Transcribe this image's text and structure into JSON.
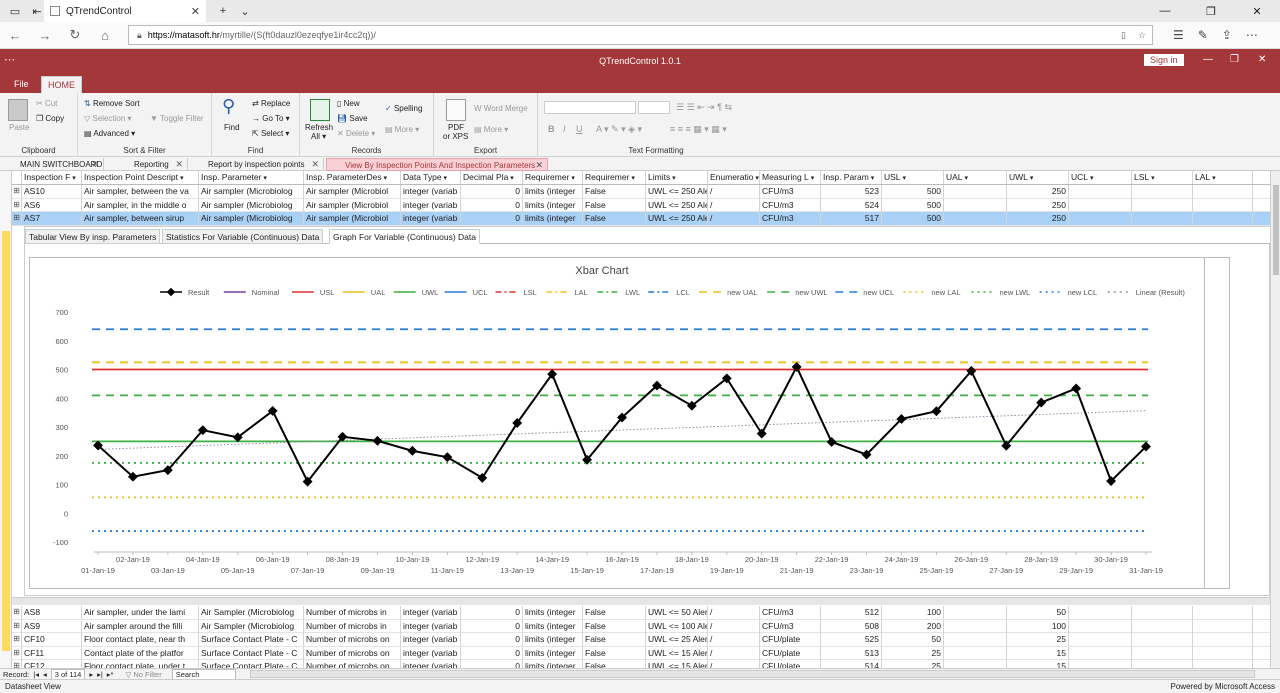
{
  "browser": {
    "tab_title": "QTrendControl",
    "url_domain": "https://matasoft.hr",
    "url_path": "/myrtille/(S(ft0dauzl0ezeqfye1ir4cc2q))/"
  },
  "app": {
    "title": "QTrendControl 1.0.1",
    "signin": "Sign in",
    "ribbon_tabs": [
      "File",
      "HOME"
    ]
  },
  "ribbon": {
    "clipboard": {
      "label": "Clipboard",
      "paste": "Paste",
      "cut": "Cut",
      "copy": "Copy"
    },
    "sort_filter": {
      "label": "Sort & Filter",
      "remove_sort": "Remove Sort",
      "selection": "Selection",
      "toggle_filter": "Toggle Filter",
      "advanced": "Advanced"
    },
    "find": {
      "label": "Find",
      "find": "Find",
      "replace": "Replace",
      "goto": "Go To",
      "select": "Select"
    },
    "records": {
      "label": "Records",
      "refresh": "Refresh",
      "refresh2": "All",
      "new": "New",
      "save": "Save",
      "delete": "Delete",
      "spelling": "Spelling",
      "more": "More"
    },
    "export": {
      "label": "Export",
      "pdf": "PDF",
      "pdf2": "or XPS",
      "word": "Word Merge",
      "more": "More"
    },
    "text_formatting": {
      "label": "Text Formatting"
    }
  },
  "doc_tabs": [
    {
      "label": "MAIN SWITCHBOARD"
    },
    {
      "label": "Reporting"
    },
    {
      "label": "Report by inspection points"
    },
    {
      "label": "View By Inspection Points And Inspection Parameters"
    }
  ],
  "grid": {
    "headers": [
      "Inspection F",
      "Inspection Point Descript",
      "Insp. Parameter",
      "Insp. ParameterDes",
      "Data Type",
      "Decimal Pla",
      "Requiremer",
      "Requiremer",
      "Limits",
      "Enumeratio",
      "Measuring L",
      "Insp. Param",
      "USL",
      "UAL",
      "UWL",
      "UCL",
      "LSL",
      "LAL"
    ],
    "top_rows": [
      [
        "AS10",
        "Air sampler, between the va",
        "Air sampler (Microbiolog",
        "Air sampler (Microbiol",
        "integer (variab",
        "0",
        "limits (integer",
        "False",
        "UWL <= 250 Ale",
        "/",
        "CFU/m3",
        "523",
        "500",
        "",
        "250",
        "",
        "",
        ""
      ],
      [
        "AS6",
        "Air sampler, in the middle o",
        "Air sampler (Microbiolog",
        "Air sampler (Microbiol",
        "integer (variab",
        "0",
        "limits (integer",
        "False",
        "UWL <= 250 Ale",
        "/",
        "CFU/m3",
        "524",
        "500",
        "",
        "250",
        "",
        "",
        ""
      ],
      [
        "AS7",
        "Air sampler, between sirup",
        "Air sampler (Microbiolog",
        "Air sampler (Microbiol",
        "integer (variab",
        "0",
        "limits (integer",
        "False",
        "UWL <= 250 Ale",
        "/",
        "CFU/m3",
        "517",
        "500",
        "",
        "250",
        "",
        "",
        ""
      ]
    ],
    "bottom_rows": [
      [
        "AS8",
        "Air sampler, under the lami",
        "Air Sampler (Microbiolog",
        "Number of microbs in",
        "integer (variab",
        "0",
        "limits (integer",
        "False",
        "UWL <= 50 Aler",
        "/",
        "CFU/m3",
        "512",
        "100",
        "",
        "50",
        "",
        "",
        ""
      ],
      [
        "AS9",
        "Air sampler around the filli",
        "Air Sampler (Microbiolog",
        "Number of microbs in",
        "integer (variab",
        "0",
        "limits (integer",
        "False",
        "UWL <= 100 Ale",
        "/",
        "CFU/m3",
        "508",
        "200",
        "",
        "100",
        "",
        "",
        ""
      ],
      [
        "CF10",
        "Floor contact plate, near th",
        "Surface Contact Plate - C",
        "Number of microbs on",
        "integer (variab",
        "0",
        "limits (integer",
        "False",
        "UWL <= 25 Aler",
        "/",
        "CFU/plate",
        "525",
        "50",
        "",
        "25",
        "",
        "",
        ""
      ],
      [
        "CF11",
        "Contact plate of the platfor",
        "Surface Contact Plate - C",
        "Number of microbs on",
        "integer (variab",
        "0",
        "limits (integer",
        "False",
        "UWL <= 15 Aler",
        "/",
        "CFU/plate",
        "513",
        "25",
        "",
        "15",
        "",
        "",
        ""
      ],
      [
        "CF12",
        "Floor contact plate, under t",
        "Surface Contact Plate - C",
        "Number of microbs on",
        "integer (variab",
        "0",
        "limits (integer",
        "False",
        "UWL <= 15 Aler",
        "/",
        "CFU/plate",
        "514",
        "25",
        "",
        "15",
        "",
        "",
        ""
      ]
    ]
  },
  "subform_tabs": [
    "Tabular View By insp. Parameters",
    "Statistics For Variable (Continuous) Data",
    "Graph For Variable (Continuous) Data"
  ],
  "chart_data": {
    "type": "line",
    "title": "Xbar Chart",
    "ylim": [
      -100,
      700
    ],
    "yticks": [
      -100,
      0,
      100,
      200,
      300,
      400,
      500,
      600,
      700
    ],
    "x": [
      "01-Jan-19",
      "02-Jan-19",
      "03-Jan-19",
      "04-Jan-19",
      "05-Jan-19",
      "06-Jan-19",
      "07-Jan-19",
      "08-Jan-19",
      "09-Jan-19",
      "10-Jan-19",
      "11-Jan-19",
      "12-Jan-19",
      "13-Jan-19",
      "14-Jan-19",
      "15-Jan-19",
      "16-Jan-19",
      "17-Jan-19",
      "18-Jan-19",
      "19-Jan-19",
      "20-Jan-19",
      "21-Jan-19",
      "22-Jan-19",
      "23-Jan-19",
      "24-Jan-19",
      "25-Jan-19",
      "26-Jan-19",
      "27-Jan-19",
      "28-Jan-19",
      "29-Jan-19",
      "30-Jan-19",
      "31-Jan-19"
    ],
    "series": [
      {
        "name": "Result",
        "color": "#000000",
        "values": [
          236,
          127,
          150,
          289,
          264,
          356,
          110,
          266,
          252,
          217,
          195,
          123,
          314,
          484,
          186,
          333,
          444,
          374,
          469,
          277,
          509,
          248,
          204,
          328,
          355,
          495,
          235,
          385,
          434,
          112,
          232
        ]
      }
    ],
    "limits": [
      {
        "name": "USL",
        "value": 500,
        "color": "#e03030",
        "style": "solid"
      },
      {
        "name": "UWL",
        "value": 250,
        "color": "#3cb043",
        "style": "solid"
      },
      {
        "name": "new UAL",
        "value": 525,
        "color": "#f0c020",
        "style": "dashed"
      },
      {
        "name": "new UCL",
        "value": 640,
        "color": "#2a7bd8",
        "style": "dashed"
      },
      {
        "name": "new UWL",
        "value": 410,
        "color": "#3cb043",
        "style": "dashed"
      },
      {
        "name": "new LAL",
        "value": 55,
        "color": "#f0c020",
        "style": "dotted"
      },
      {
        "name": "new LWL",
        "value": 175,
        "color": "#3cb043",
        "style": "dotted"
      },
      {
        "name": "new LCL",
        "value": -62,
        "color": "#2a7bd8",
        "style": "dotted"
      }
    ],
    "trend": {
      "name": "Linear (Result)",
      "start": 222,
      "end": 357,
      "color": "#8a8aa0"
    },
    "legend": [
      {
        "name": "Result",
        "color": "#000000",
        "style": "marker"
      },
      {
        "name": "Nominal",
        "color": "#7b3fa8",
        "style": "solid"
      },
      {
        "name": "USL",
        "color": "#e03030",
        "style": "solid"
      },
      {
        "name": "UAL",
        "color": "#f0c020",
        "style": "solid"
      },
      {
        "name": "UWL",
        "color": "#3cb043",
        "style": "solid"
      },
      {
        "name": "UCL",
        "color": "#2a7bd8",
        "style": "solid"
      },
      {
        "name": "LSL",
        "color": "#e03030",
        "style": "dashdot"
      },
      {
        "name": "LAL",
        "color": "#f0c020",
        "style": "dashdot"
      },
      {
        "name": "LWL",
        "color": "#3cb043",
        "style": "dashdot"
      },
      {
        "name": "LCL",
        "color": "#2a7bd8",
        "style": "dashdot"
      },
      {
        "name": "new UAL",
        "color": "#f0c020",
        "style": "dashed"
      },
      {
        "name": "new UWL",
        "color": "#3cb043",
        "style": "dashed"
      },
      {
        "name": "new UCL",
        "color": "#2a7bd8",
        "style": "dashed"
      },
      {
        "name": "new LAL",
        "color": "#f0c020",
        "style": "dotted"
      },
      {
        "name": "new LWL",
        "color": "#3cb043",
        "style": "dotted"
      },
      {
        "name": "new LCL",
        "color": "#2a7bd8",
        "style": "dotted"
      },
      {
        "name": "Linear (Result)",
        "color": "#8a8aa0",
        "style": "dotted"
      }
    ]
  },
  "record_nav": {
    "label": "Record:",
    "current": "3 of 114",
    "filter": "No Filter",
    "search": "Search"
  },
  "status": {
    "left": "Datasheet View",
    "right": "Powered by Microsoft Access"
  },
  "colors": {
    "accent": "#a4373a",
    "selected_row": "#a9d0f5"
  }
}
